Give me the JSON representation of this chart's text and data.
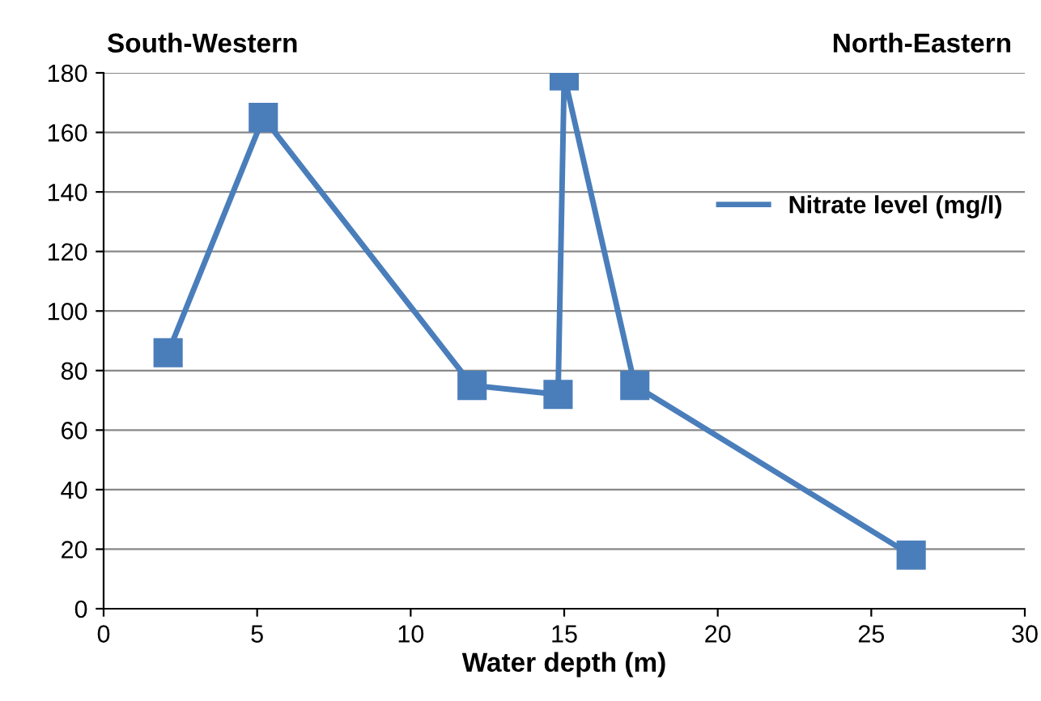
{
  "chart_data": {
    "type": "line",
    "xlabel": "Water depth (m)",
    "x": [
      2.1,
      5.2,
      12,
      14.8,
      15.0,
      17.3,
      26.3
    ],
    "series": [
      {
        "name": "Nitrate level (mg/l)",
        "color": "#4a7ebb",
        "values": [
          86,
          165,
          75,
          72,
          179,
          75,
          18
        ]
      }
    ],
    "xlim": [
      0,
      30
    ],
    "xticks": [
      0,
      5,
      10,
      15,
      20,
      25,
      30
    ],
    "ylim": [
      0,
      180
    ],
    "yticks": [
      0,
      20,
      40,
      60,
      80,
      100,
      120,
      140,
      160,
      180
    ],
    "grid": "y",
    "legend": "right",
    "marker": "square",
    "line_style": "solid",
    "annotations": [
      "South-Western",
      "North-Eastern"
    ]
  }
}
